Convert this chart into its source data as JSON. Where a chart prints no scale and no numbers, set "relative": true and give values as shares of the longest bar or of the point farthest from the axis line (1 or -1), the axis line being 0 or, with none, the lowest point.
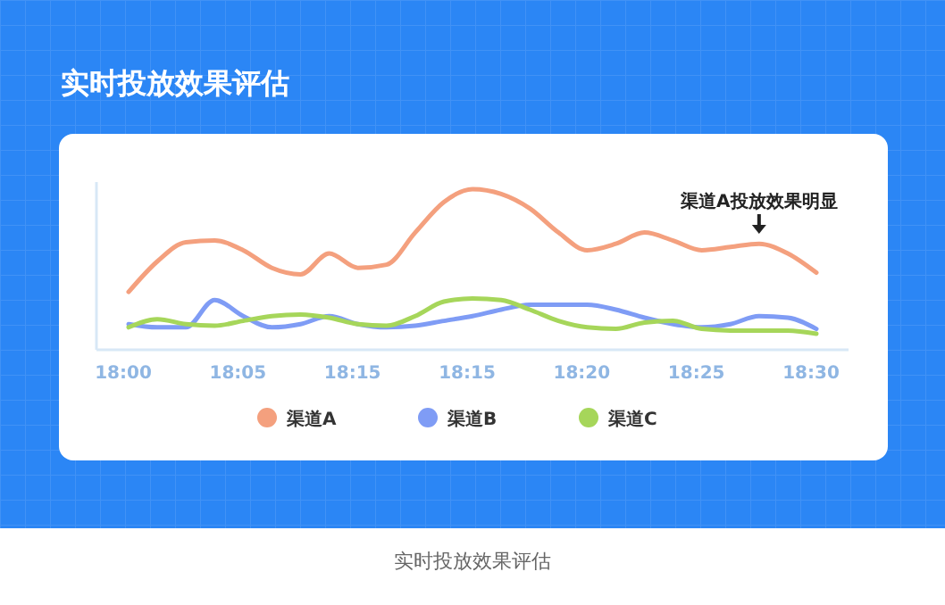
{
  "chart_data": {
    "type": "line",
    "title": "实时投放效果评估",
    "relative": true,
    "legend": "bottom",
    "marker": "none",
    "line_style": "solid",
    "categories": [
      "18:00",
      null,
      null,
      null,
      "18:05",
      null,
      null,
      null,
      "18:15",
      null,
      null,
      null,
      "18:15",
      null,
      null,
      null,
      "18:20",
      null,
      null,
      null,
      "18:25",
      null,
      null,
      null,
      "18:30"
    ],
    "series": [
      {
        "name": "渠道A",
        "color": "#f4a07e",
        "values": [
          0.36,
          0.55,
          0.67,
          0.68,
          0.62,
          0.51,
          0.47,
          0.6,
          0.51,
          0.53,
          0.73,
          0.92,
          1,
          0.97,
          0.88,
          0.73,
          0.62,
          0.66,
          0.73,
          0.68,
          0.62,
          0.64,
          0.66,
          0.6,
          0.48
        ]
      },
      {
        "name": "渠道B",
        "color": "#7f9cf5",
        "values": [
          0.16,
          0.14,
          0.14,
          0.31,
          0.21,
          0.14,
          0.16,
          0.21,
          0.16,
          0.14,
          0.15,
          0.18,
          0.21,
          0.25,
          0.28,
          0.28,
          0.28,
          0.25,
          0.2,
          0.16,
          0.14,
          0.16,
          0.21,
          0.2,
          0.13
        ]
      },
      {
        "name": "渠道C",
        "color": "#a6d65a",
        "values": [
          0.14,
          0.19,
          0.16,
          0.15,
          0.18,
          0.21,
          0.22,
          0.2,
          0.16,
          0.15,
          0.21,
          0.3,
          0.32,
          0.31,
          0.25,
          0.18,
          0.14,
          0.13,
          0.17,
          0.18,
          0.13,
          0.12,
          0.12,
          0.12,
          0.1
        ]
      }
    ],
    "annotations": [
      "渠道A投放效果明显",
      "实时投放效果评估"
    ]
  }
}
